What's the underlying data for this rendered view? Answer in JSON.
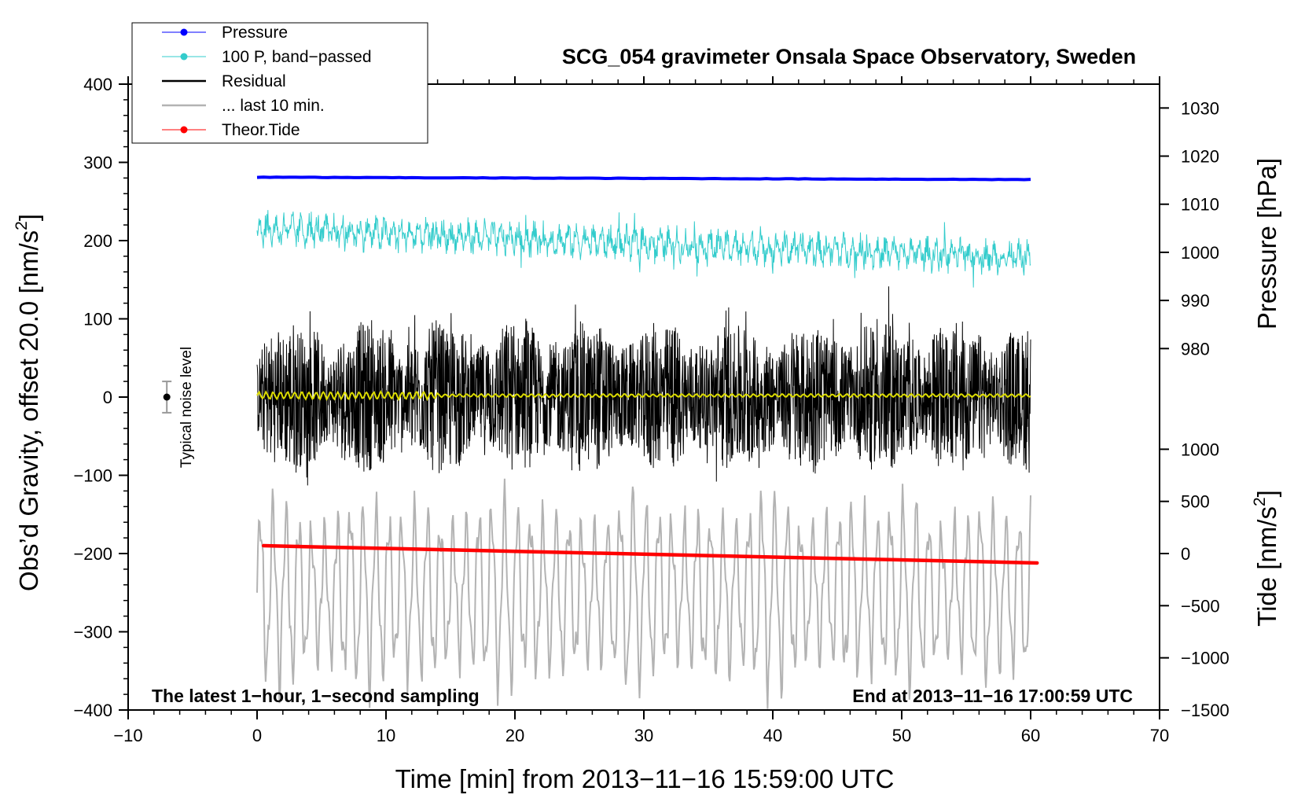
{
  "chart_data": {
    "type": "line",
    "title": "SCG_054 gravimeter Onsala Space Observatory, Sweden",
    "xlabel": "Time [min] from 2013−11−16 15:59:00 UTC",
    "ylabel_left": "Obs’d Gravity, offset 20.0 [nm/s²]",
    "ylabel_left_main": "Obs’d Gravity, offset 20.0 [nm/s",
    "ylabel_left_sup": "2",
    "ylabel_left_end": "]",
    "ylabel_right_pressure": "Pressure [hPa]",
    "ylabel_right_tide": "Tide [nm/s²]",
    "ylabel_right_tide_main": "Tide [nm/s",
    "ylabel_right_tide_sup": "2",
    "ylabel_right_tide_end": "]",
    "xlim": [
      -10,
      70
    ],
    "ylim": [
      -400,
      400
    ],
    "x_ticks": [
      -10,
      0,
      10,
      20,
      30,
      40,
      50,
      60,
      70
    ],
    "x_tick_labels": [
      "−10",
      "0",
      "10",
      "20",
      "30",
      "40",
      "50",
      "60",
      "70"
    ],
    "y_ticks": [
      -400,
      -300,
      -200,
      -100,
      0,
      100,
      200,
      300,
      400
    ],
    "y_tick_labels": [
      "−400",
      "−300",
      "−200",
      "−100",
      "0",
      "100",
      "200",
      "300",
      "400"
    ],
    "pressure_axis": {
      "ticks": [
        980,
        990,
        1000,
        1010,
        1020,
        1030
      ],
      "tick_labels": [
        "980",
        "990",
        "1000",
        "1010",
        "1020",
        "1030"
      ],
      "gravity_at_1000": 185,
      "gravity_per_hpa": 6.15
    },
    "tide_axis": {
      "ticks": [
        -1500,
        -1000,
        -500,
        0,
        500,
        1000
      ],
      "tick_labels": [
        "−1500",
        "−1000",
        "−500",
        "0",
        "500",
        "1000"
      ],
      "gravity_at_0": -200,
      "gravity_per_unit": 0.1333
    },
    "legend_position": "top-left",
    "legend": [
      {
        "label": "Pressure",
        "color": "#0000ff",
        "marker": true
      },
      {
        "label": "100 P, band−passed",
        "color": "#33cccc",
        "marker": true
      },
      {
        "label": "Residual",
        "color": "#000000",
        "marker": false
      },
      {
        "label": "... last 10 min.",
        "color": "#b3b3b3",
        "marker": false
      },
      {
        "label": "Theor.Tide",
        "color": "#ff0000",
        "marker": true
      }
    ],
    "series": [
      {
        "name": "Pressure",
        "color": "#0000ff",
        "x_range": [
          0,
          60
        ],
        "y_start": 281,
        "y_end": 278,
        "unit": "gravity-axis"
      },
      {
        "name": "100 P, band−passed",
        "color": "#33cccc",
        "x_range": [
          0,
          60
        ],
        "center_start": 215,
        "center_end": 178,
        "amplitude": 18
      },
      {
        "name": "Residual",
        "color": "#000000",
        "x_range": [
          0,
          60
        ],
        "center": 0,
        "amplitude": 100
      },
      {
        "name": "... last 10 min.",
        "color": "#b3b3b3",
        "x_range": [
          0,
          60
        ],
        "center": -250,
        "amplitude": 110
      },
      {
        "name": "Low-pass residual",
        "color": "#dddd00",
        "x_range": [
          0,
          60
        ],
        "center": 2,
        "amplitude": 5
      },
      {
        "name": "Theor.Tide",
        "color": "#ff0000",
        "x_range": [
          0,
          60.5
        ],
        "y_start": -190,
        "y_end": -212
      }
    ],
    "noise_marker": {
      "x": -7,
      "y": 0,
      "error": 20,
      "label": "Typical noise level"
    },
    "annotations": {
      "bottom_left": "The latest 1−hour, 1−second sampling",
      "bottom_right": "End at 2013−11−16 17:00:59 UTC"
    },
    "colors": {
      "pressure": "#0000ff",
      "bandpass": "#33cccc",
      "residual": "#000000",
      "last10": "#b3b3b3",
      "lowpass": "#dddd00",
      "tide": "#ff0000",
      "noise_bar": "#999999"
    }
  }
}
